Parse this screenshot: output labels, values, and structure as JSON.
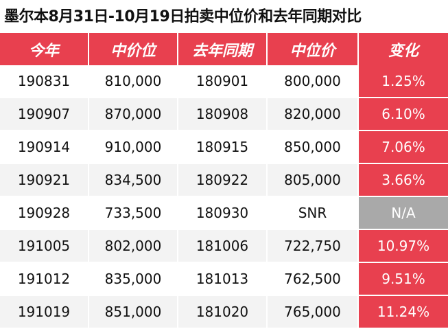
{
  "title": "墨尔本8月31日-10月19日拍卖中位价和去年同期对比",
  "headers": [
    "今年",
    "中价位",
    "去年同期",
    "中位价",
    "变化"
  ],
  "colors": {
    "header_bg": "#e8404f",
    "change_bg": "#e8404f",
    "na_bg": "#a9a9a9",
    "alt_row": "#f3f3f3"
  },
  "rows": [
    [
      "190831",
      "810,000",
      "180901",
      "800,000",
      "1.25%"
    ],
    [
      "190907",
      "870,000",
      "180908",
      "820,000",
      "6.10%"
    ],
    [
      "190914",
      "910,000",
      "180915",
      "850,000",
      "7.06%"
    ],
    [
      "190921",
      "834,500",
      "180922",
      "805,000",
      "3.66%"
    ],
    [
      "190928",
      "733,500",
      "180930",
      "SNR",
      "N/A"
    ],
    [
      "191005",
      "802,000",
      "181006",
      "722,750",
      "10.97%"
    ],
    [
      "191012",
      "835,000",
      "181013",
      "762,500",
      "9.51%"
    ],
    [
      "191019",
      "851,000",
      "181020",
      "765,000",
      "11.24%"
    ]
  ]
}
